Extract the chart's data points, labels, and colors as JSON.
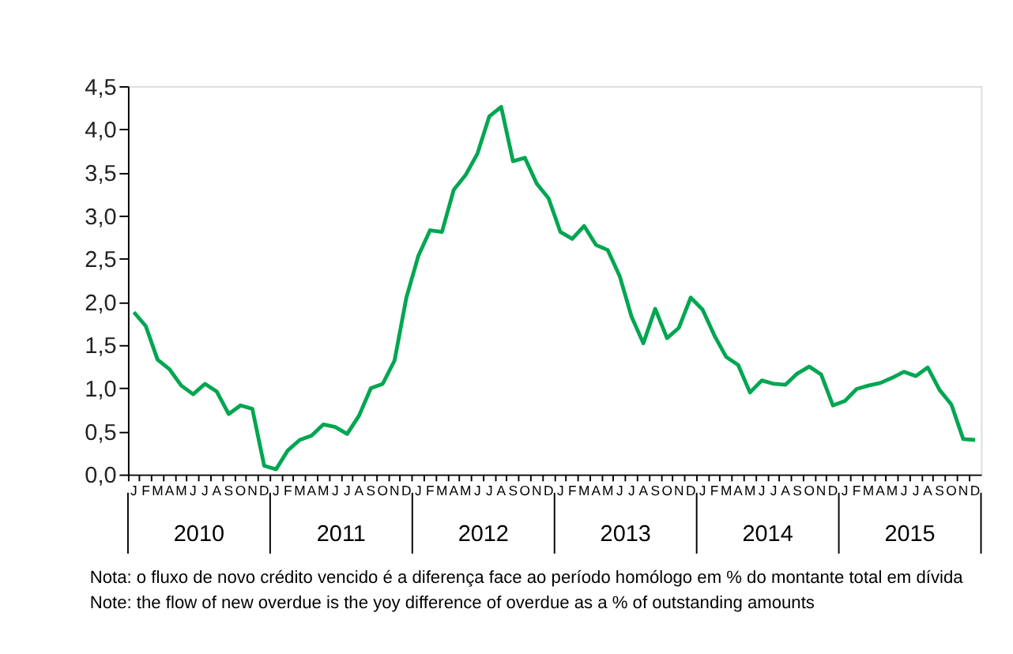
{
  "chart_data": {
    "type": "line",
    "categories": [
      "J",
      "F",
      "M",
      "A",
      "M",
      "J",
      "J",
      "A",
      "S",
      "O",
      "N",
      "D",
      "J",
      "F",
      "M",
      "A",
      "M",
      "J",
      "J",
      "A",
      "S",
      "O",
      "N",
      "D",
      "J",
      "F",
      "M",
      "A",
      "M",
      "J",
      "J",
      "A",
      "S",
      "O",
      "N",
      "D",
      "J",
      "F",
      "M",
      "A",
      "M",
      "J",
      "J",
      "A",
      "S",
      "O",
      "N",
      "D",
      "J",
      "F",
      "M",
      "A",
      "M",
      "J",
      "J",
      "A",
      "S",
      "O",
      "N",
      "D",
      "J",
      "F",
      "M",
      "A",
      "M",
      "J",
      "J",
      "A",
      "S",
      "O",
      "N",
      "D"
    ],
    "series": [
      {
        "color": "#00a651",
        "values": [
          1.88,
          1.72,
          1.33,
          1.22,
          1.03,
          0.93,
          1.05,
          0.96,
          0.7,
          0.8,
          0.76,
          0.1,
          0.06,
          0.28,
          0.4,
          0.45,
          0.58,
          0.55,
          0.47,
          0.68,
          1.0,
          1.05,
          1.32,
          2.05,
          2.53,
          2.83,
          2.81,
          3.3,
          3.47,
          3.72,
          4.15,
          4.26,
          3.63,
          3.67,
          3.37,
          3.2,
          2.81,
          2.73,
          2.88,
          2.66,
          2.6,
          2.3,
          1.83,
          1.52,
          1.92,
          1.58,
          1.7,
          2.05,
          1.91,
          1.61,
          1.36,
          1.27,
          0.95,
          1.09,
          1.05,
          1.04,
          1.17,
          1.25,
          1.16,
          0.8,
          0.85,
          0.99,
          1.03,
          1.06,
          1.12,
          1.19,
          1.14,
          1.24,
          0.98,
          0.81,
          0.41,
          0.4
        ]
      }
    ],
    "ylim": [
      0,
      4.5
    ],
    "yticks": [
      {
        "value": 0,
        "label": "0,0"
      },
      {
        "value": 0.5,
        "label": "0,5"
      },
      {
        "value": 1,
        "label": "1,0"
      },
      {
        "value": 1.5,
        "label": "1,5"
      },
      {
        "value": 2,
        "label": "2,0"
      },
      {
        "value": 2.5,
        "label": "2,5"
      },
      {
        "value": 3,
        "label": "3,0"
      },
      {
        "value": 3.5,
        "label": "3,5"
      },
      {
        "value": 4,
        "label": "4,0"
      },
      {
        "value": 4.5,
        "label": "4,5"
      }
    ],
    "grid": false,
    "annotations": [
      "2010",
      "2011",
      "2012",
      "2013",
      "2014",
      "2015",
      "Nota: o fluxo de novo crédito vencido é a diferença face ao período homólogo em % do montante total em dívida",
      "Note: the flow of new overdue is the yoy difference of overdue as a % of outstanding amounts"
    ]
  }
}
